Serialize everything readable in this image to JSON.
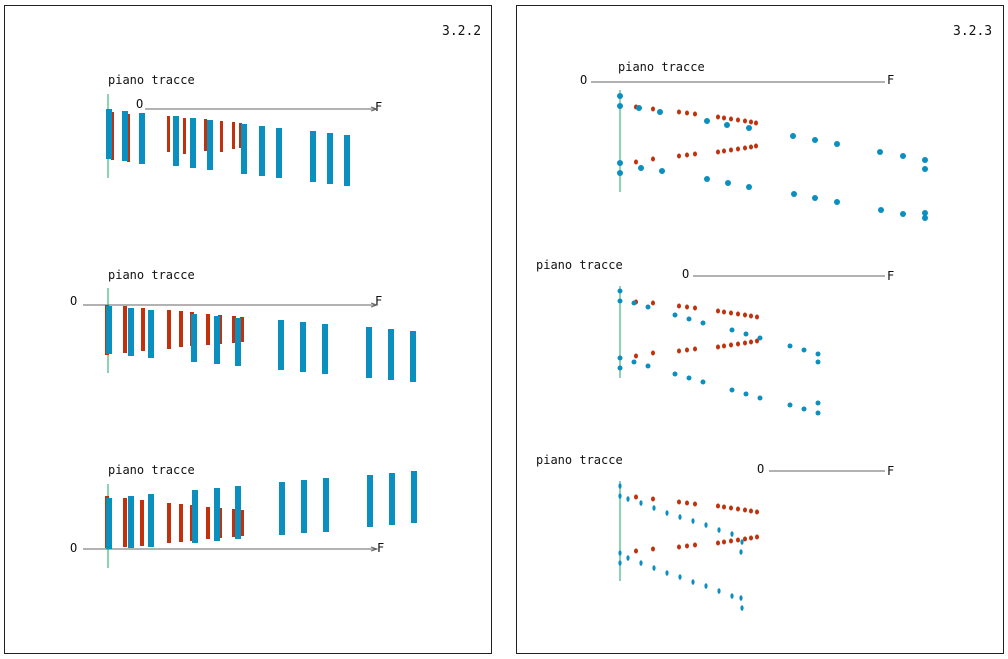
{
  "panels": [
    {
      "id": "left",
      "number": "3.2.2",
      "subplots": [
        {
          "label": "piano tracce",
          "origin": "O",
          "end": "F"
        },
        {
          "label": "piano tracce",
          "origin": "O",
          "end": "F"
        },
        {
          "label": "piano tracce",
          "origin": "O",
          "end": "F"
        }
      ]
    },
    {
      "id": "right",
      "number": "3.2.3",
      "subplots": [
        {
          "label": "piano tracce",
          "origin": "O",
          "end": "F"
        },
        {
          "label": "piano tracce",
          "origin": "O",
          "end": "F"
        },
        {
          "label": "piano tracce",
          "origin": "O",
          "end": "F"
        }
      ]
    }
  ],
  "colors": {
    "blue": "#0b8fbf",
    "red": "#c2300c",
    "green": "#1aa86a",
    "axis": "#666666",
    "border": "#222222"
  }
}
